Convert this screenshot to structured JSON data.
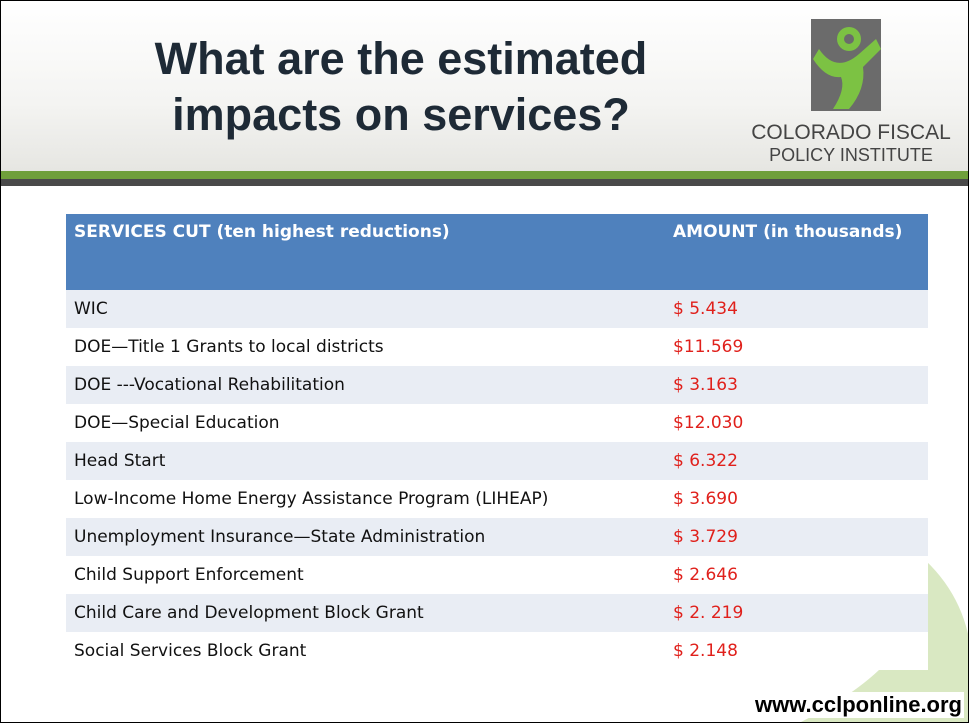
{
  "header": {
    "title_lines": [
      "What are the estimated",
      "impacts on services?"
    ],
    "logo_lines": [
      "COLORADO FISCAL",
      "POLICY INSTITUTE"
    ]
  },
  "table": {
    "columns": [
      "SERVICES CUT (ten highest reductions)",
      "AMOUNT (in thousands)"
    ],
    "rows": [
      [
        "WIC",
        "$ 5.434"
      ],
      [
        "DOE—Title 1 Grants to local districts",
        "$11.569"
      ],
      [
        "DOE ---Vocational Rehabilitation",
        "$ 3.163"
      ],
      [
        "DOE—Special Education",
        "$12.030"
      ],
      [
        "Head Start",
        "$ 6.322"
      ],
      [
        "Low-Income Home Energy Assistance Program (LIHEAP)",
        "$ 3.690"
      ],
      [
        "Unemployment Insurance—State Administration",
        "$ 3.729"
      ],
      [
        "Child Support Enforcement",
        "$ 2.646"
      ],
      [
        "Child Care and Development Block Grant",
        "$ 2. 219"
      ],
      [
        "Social Services Block Grant",
        "$ 2.148"
      ]
    ]
  },
  "footer": "www.cclponline.org"
}
